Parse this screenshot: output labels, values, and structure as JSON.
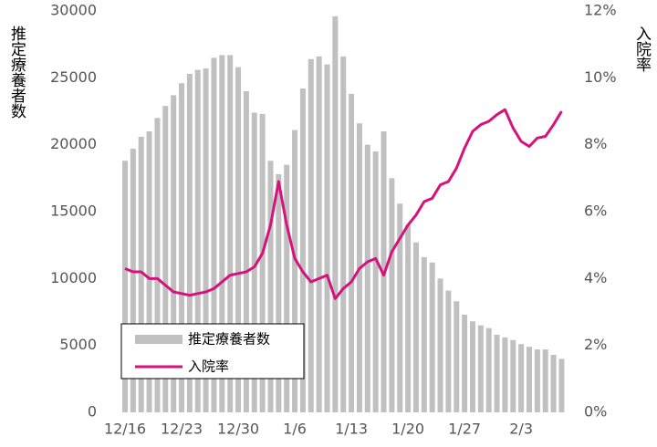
{
  "chart_data": {
    "type": "bar-line",
    "y_label": "推定療養者数",
    "y2_label": "入院率",
    "categories": [
      "12/16",
      null,
      null,
      null,
      null,
      null,
      null,
      "12/23",
      null,
      null,
      null,
      null,
      null,
      null,
      "12/30",
      null,
      null,
      null,
      null,
      null,
      null,
      "1/6",
      null,
      null,
      null,
      null,
      null,
      null,
      "1/13",
      null,
      null,
      null,
      null,
      null,
      null,
      "1/20",
      null,
      null,
      null,
      null,
      null,
      null,
      "1/27",
      null,
      null,
      null,
      null,
      null,
      null,
      "2/3",
      null,
      null,
      null,
      null,
      null
    ],
    "series": [
      {
        "name": "推定療養者数",
        "type": "bar",
        "color": "#c0c0c0",
        "values": [
          18800,
          19700,
          20600,
          21000,
          22000,
          22900,
          23700,
          24600,
          25300,
          25600,
          25700,
          26500,
          26700,
          26700,
          25800,
          24000,
          22400,
          22300,
          18800,
          17800,
          18500,
          21100,
          24200,
          26400,
          26600,
          26000,
          29600,
          26600,
          23800,
          21600,
          20000,
          19500,
          21000,
          17500,
          15600,
          14000,
          12700,
          11600,
          11200,
          10000,
          9100,
          8300,
          7300,
          6800,
          6500,
          6300,
          5800,
          5600,
          5400,
          5100,
          4900,
          4700,
          4700,
          4300,
          4000
        ]
      },
      {
        "name": "入院率",
        "type": "line",
        "axis": "y2",
        "color": "#d6127d",
        "values": [
          4.3,
          4.2,
          4.2,
          4.0,
          4.0,
          3.8,
          3.6,
          3.55,
          3.5,
          3.55,
          3.6,
          3.7,
          3.9,
          4.1,
          4.15,
          4.2,
          4.35,
          4.75,
          5.6,
          6.9,
          5.6,
          4.6,
          4.2,
          3.9,
          4.0,
          4.1,
          3.4,
          3.7,
          3.9,
          4.3,
          4.5,
          4.6,
          4.1,
          4.8,
          5.2,
          5.6,
          5.9,
          6.3,
          6.4,
          6.8,
          6.9,
          7.3,
          7.9,
          8.4,
          8.6,
          8.7,
          8.9,
          9.05,
          8.5,
          8.1,
          7.95,
          8.2,
          8.25,
          8.6,
          9.0
        ]
      }
    ],
    "ylim": [
      0,
      30000
    ],
    "yticks": [
      0,
      5000,
      10000,
      15000,
      20000,
      25000,
      30000
    ],
    "y2lim": [
      0,
      12
    ],
    "y2ticks": [
      {
        "value": 0,
        "label": "0%"
      },
      {
        "value": 2,
        "label": "2%"
      },
      {
        "value": 4,
        "label": "4%"
      },
      {
        "value": 6,
        "label": "6%"
      },
      {
        "value": 8,
        "label": "8%"
      },
      {
        "value": 10,
        "label": "10%"
      },
      {
        "value": 12,
        "label": "12%"
      }
    ],
    "legend": "lower-left"
  }
}
